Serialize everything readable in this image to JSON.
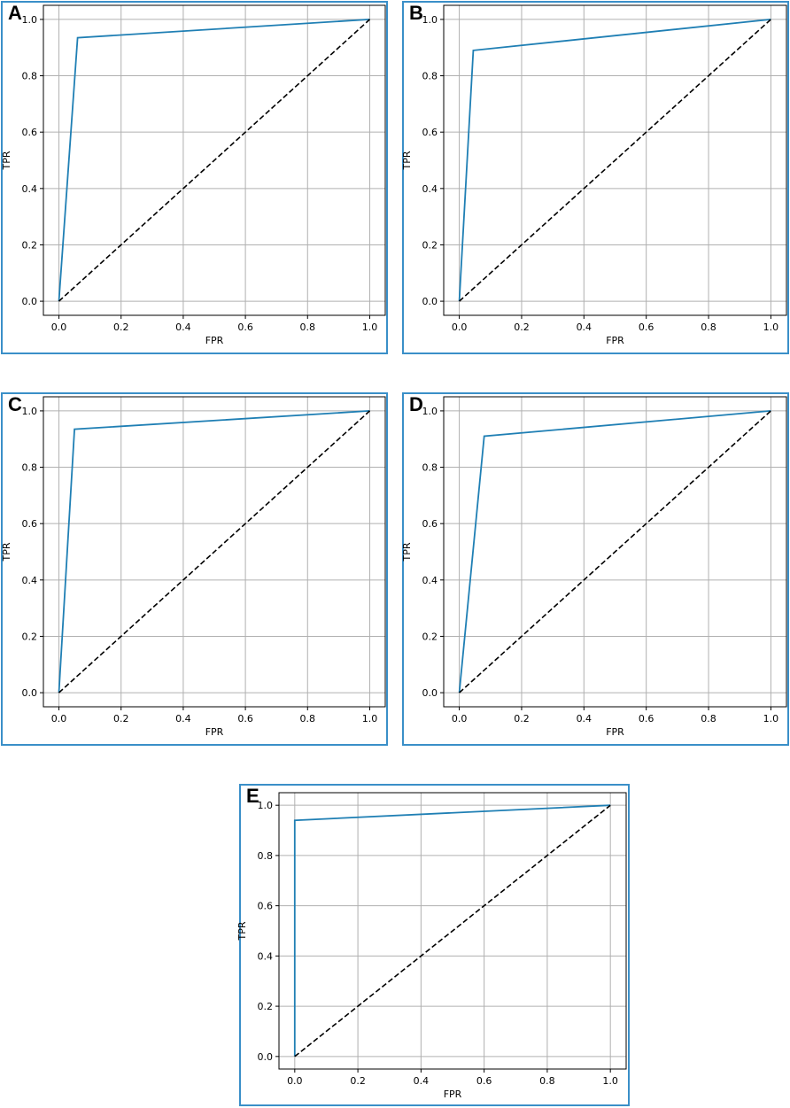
{
  "style": {
    "panel_border_color": "#3a8fc8",
    "roc_color": "#1f7fb4",
    "diagonal_color": "#000000",
    "grid_color": "#b0b0b0"
  },
  "chart_data": [
    {
      "panel": "A",
      "type": "line",
      "xlabel": "FPR",
      "ylabel": "TPR",
      "xlim": [
        -0.05,
        1.05
      ],
      "ylim": [
        -0.05,
        1.05
      ],
      "grid": true,
      "xticks": [
        "0.0",
        "0.2",
        "0.4",
        "0.6",
        "0.8",
        "1.0"
      ],
      "yticks": [
        "0.0",
        "0.2",
        "0.4",
        "0.6",
        "0.8",
        "1.0"
      ],
      "series": [
        {
          "style": "solid",
          "x": [
            0.0,
            0.06,
            1.0
          ],
          "y": [
            0.0,
            0.935,
            1.0
          ]
        },
        {
          "style": "dashed",
          "x": [
            0.0,
            1.0
          ],
          "y": [
            0.0,
            1.0
          ]
        }
      ]
    },
    {
      "panel": "B",
      "type": "line",
      "xlabel": "FPR",
      "ylabel": "TPR",
      "xlim": [
        -0.05,
        1.05
      ],
      "ylim": [
        -0.05,
        1.05
      ],
      "grid": true,
      "xticks": [
        "0.0",
        "0.2",
        "0.4",
        "0.6",
        "0.8",
        "1.0"
      ],
      "yticks": [
        "0.0",
        "0.2",
        "0.4",
        "0.6",
        "0.8",
        "1.0"
      ],
      "series": [
        {
          "style": "solid",
          "x": [
            0.0,
            0.045,
            1.0
          ],
          "y": [
            0.0,
            0.89,
            1.0
          ]
        },
        {
          "style": "dashed",
          "x": [
            0.0,
            1.0
          ],
          "y": [
            0.0,
            1.0
          ]
        }
      ]
    },
    {
      "panel": "C",
      "type": "line",
      "xlabel": "FPR",
      "ylabel": "TPR",
      "xlim": [
        -0.05,
        1.05
      ],
      "ylim": [
        -0.05,
        1.05
      ],
      "grid": true,
      "xticks": [
        "0.0",
        "0.2",
        "0.4",
        "0.6",
        "0.8",
        "1.0"
      ],
      "yticks": [
        "0.0",
        "0.2",
        "0.4",
        "0.6",
        "0.8",
        "1.0"
      ],
      "series": [
        {
          "style": "solid",
          "x": [
            0.0,
            0.05,
            1.0
          ],
          "y": [
            0.0,
            0.935,
            1.0
          ]
        },
        {
          "style": "dashed",
          "x": [
            0.0,
            1.0
          ],
          "y": [
            0.0,
            1.0
          ]
        }
      ]
    },
    {
      "panel": "D",
      "type": "line",
      "xlabel": "FPR",
      "ylabel": "TPR",
      "xlim": [
        -0.05,
        1.05
      ],
      "ylim": [
        -0.05,
        1.05
      ],
      "grid": true,
      "xticks": [
        "0.0",
        "0.2",
        "0.4",
        "0.6",
        "0.8",
        "1.0"
      ],
      "yticks": [
        "0.0",
        "0.2",
        "0.4",
        "0.6",
        "0.8",
        "1.0"
      ],
      "series": [
        {
          "style": "solid",
          "x": [
            0.0,
            0.08,
            1.0
          ],
          "y": [
            0.0,
            0.91,
            1.0
          ]
        },
        {
          "style": "dashed",
          "x": [
            0.0,
            1.0
          ],
          "y": [
            0.0,
            1.0
          ]
        }
      ]
    },
    {
      "panel": "E",
      "type": "line",
      "xlabel": "FPR",
      "ylabel": "TPR",
      "xlim": [
        -0.05,
        1.05
      ],
      "ylim": [
        -0.05,
        1.05
      ],
      "grid": true,
      "xticks": [
        "0.0",
        "0.2",
        "0.4",
        "0.6",
        "0.8",
        "1.0"
      ],
      "yticks": [
        "0.0",
        "0.2",
        "0.4",
        "0.6",
        "0.8",
        "1.0"
      ],
      "series": [
        {
          "style": "solid",
          "x": [
            0.0,
            0.0,
            1.0
          ],
          "y": [
            0.0,
            0.94,
            1.0
          ]
        },
        {
          "style": "dashed",
          "x": [
            0.0,
            1.0
          ],
          "y": [
            0.0,
            1.0
          ]
        }
      ]
    }
  ]
}
